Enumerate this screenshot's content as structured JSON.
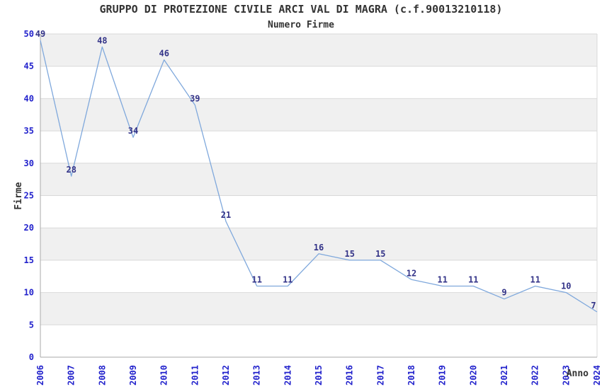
{
  "title": "GRUPPO DI PROTEZIONE CIVILE ARCI VAL DI MAGRA (c.f.90013210118)",
  "subtitle": "Numero Firme",
  "chart_data": {
    "type": "line",
    "title": "GRUPPO DI PROTEZIONE CIVILE ARCI VAL DI MAGRA (c.f.90013210118)",
    "subtitle": "Numero Firme",
    "x": [
      2006,
      2007,
      2008,
      2009,
      2010,
      2011,
      2012,
      2013,
      2014,
      2015,
      2016,
      2017,
      2018,
      2019,
      2020,
      2021,
      2022,
      2023,
      2024
    ],
    "values": [
      49,
      28,
      48,
      34,
      46,
      39,
      21,
      11,
      11,
      16,
      15,
      15,
      12,
      11,
      11,
      9,
      11,
      10,
      7
    ],
    "xlabel": "Anno",
    "ylabel": "Firme",
    "ylim": [
      0,
      50
    ],
    "ytick_step": 5,
    "yticks": [
      0,
      5,
      10,
      15,
      20,
      25,
      30,
      35,
      40,
      45,
      50
    ],
    "grid": true,
    "banded_background": true,
    "data_labels": true,
    "legend": "none",
    "x_tick_rotation": -90,
    "colors": {
      "line": "#7FA8DC",
      "tick_label": "#2222CC",
      "data_label": "#333388",
      "band": "#F0F0F0",
      "gridline": "#D9D9D9",
      "axis": "#AAAAAA",
      "title_text": "#333333"
    }
  }
}
